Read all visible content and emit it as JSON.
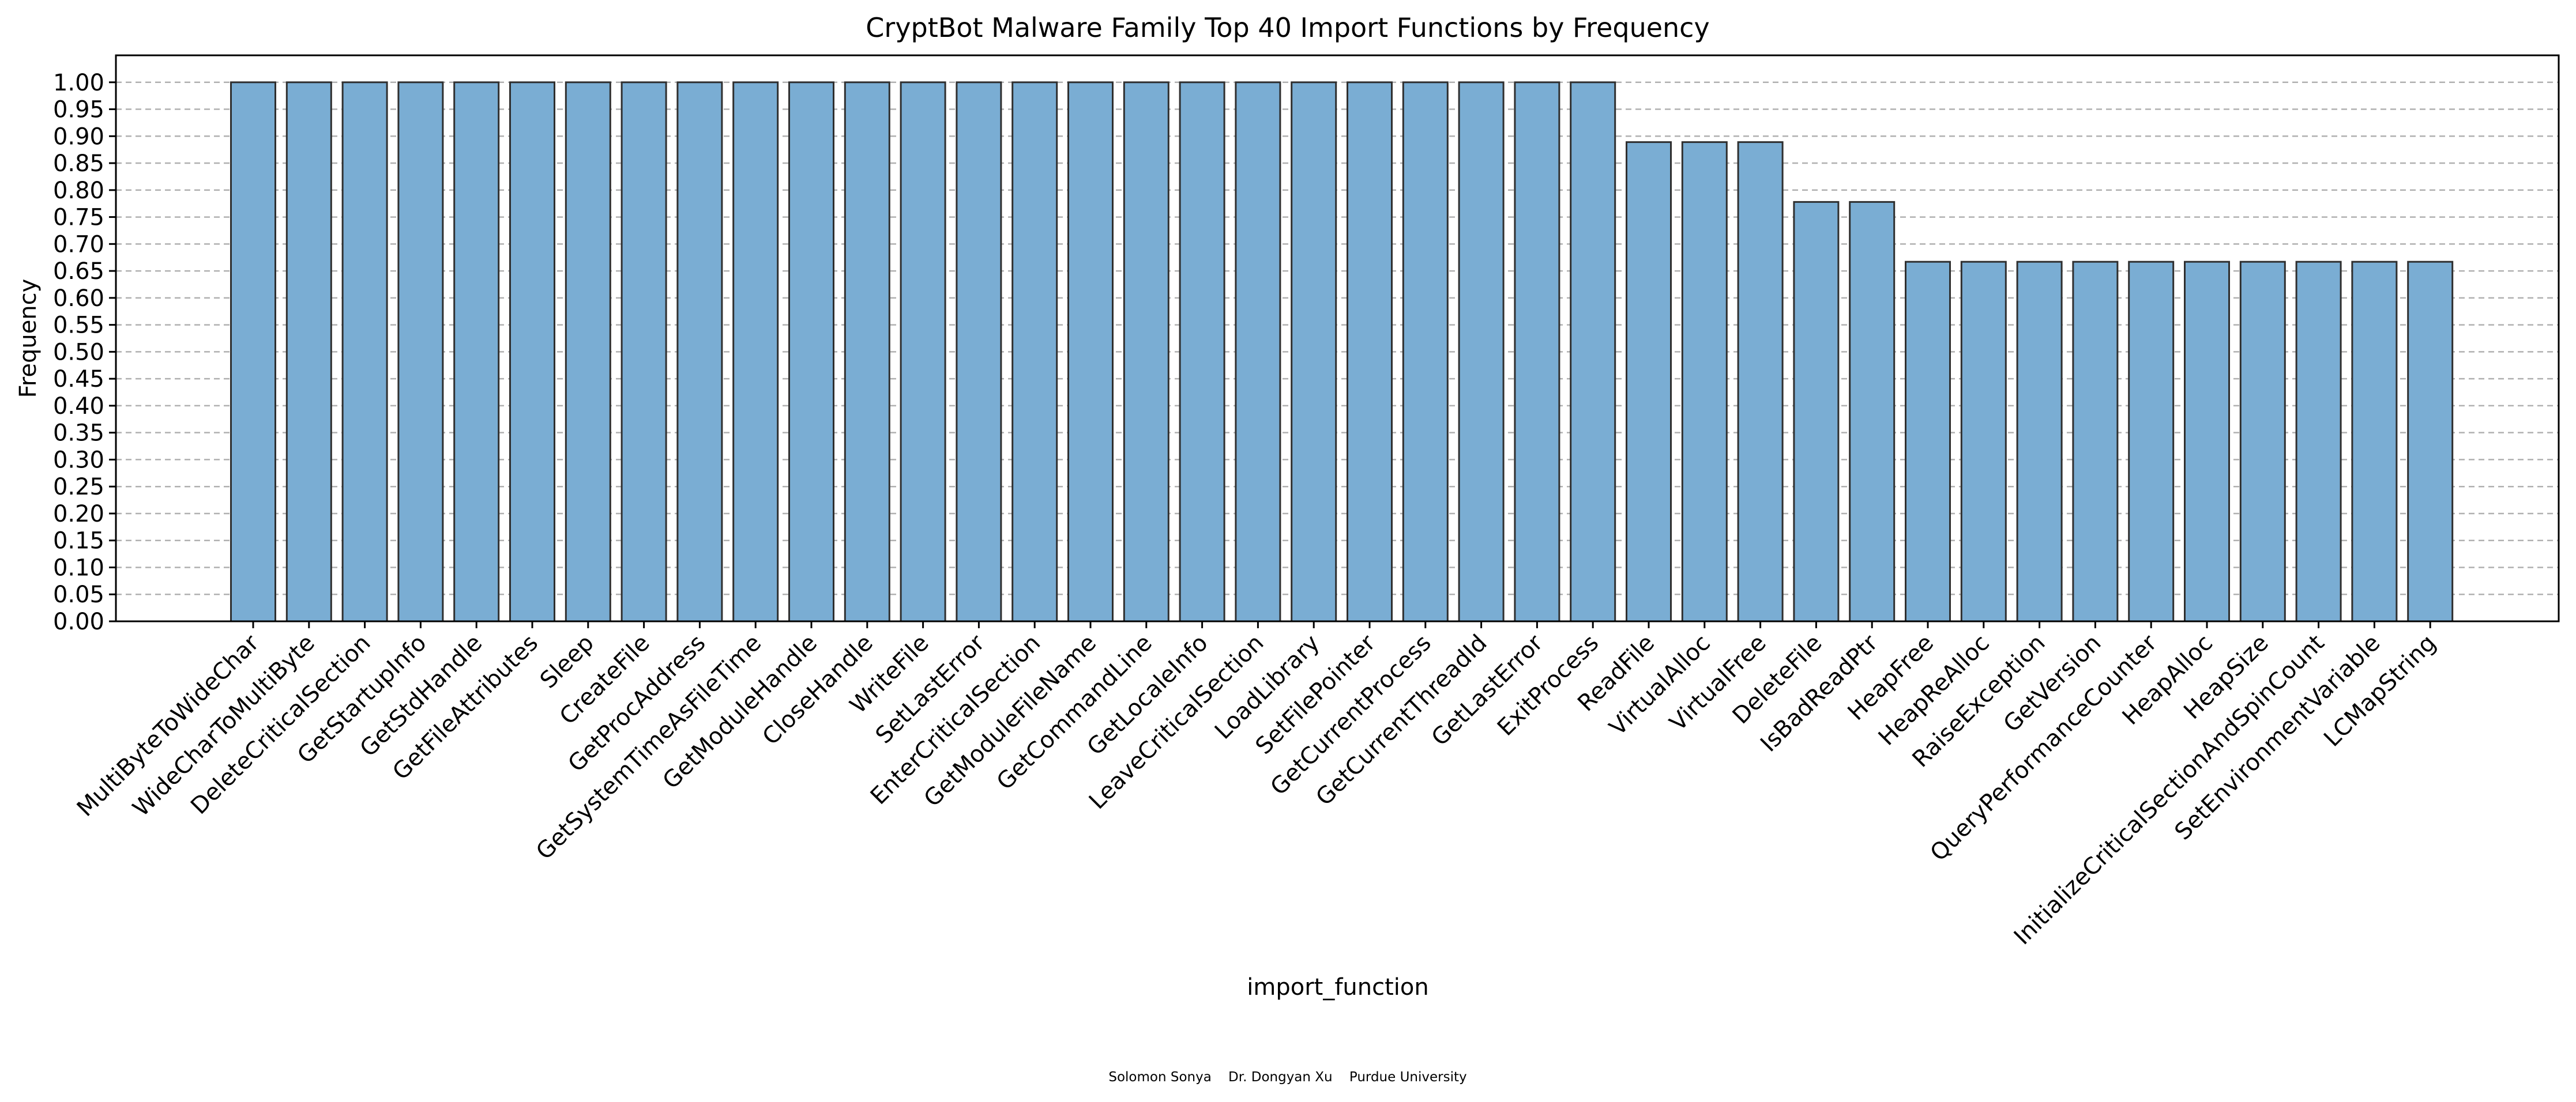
{
  "chart_data": {
    "type": "bar",
    "title": "CryptBot Malware Family Top 40 Import Functions by Frequency",
    "xlabel": "import_function",
    "ylabel": "Frequency",
    "ylim": [
      0,
      1.05
    ],
    "yticks": [
      "0.00",
      "0.05",
      "0.10",
      "0.15",
      "0.20",
      "0.25",
      "0.30",
      "0.35",
      "0.40",
      "0.45",
      "0.50",
      "0.55",
      "0.60",
      "0.65",
      "0.70",
      "0.75",
      "0.80",
      "0.85",
      "0.90",
      "0.95",
      "1.00"
    ],
    "grid": "y-dashed",
    "bar_color": "#7aadd3",
    "edge_color": "#2f2f2f",
    "categories": [
      "MultiByteToWideChar",
      "WideCharToMultiByte",
      "DeleteCriticalSection",
      "GetStartupInfo",
      "GetStdHandle",
      "GetFileAttributes",
      "Sleep",
      "CreateFile",
      "GetProcAddress",
      "GetSystemTimeAsFileTime",
      "GetModuleHandle",
      "CloseHandle",
      "WriteFile",
      "SetLastError",
      "EnterCriticalSection",
      "GetModuleFileName",
      "GetCommandLine",
      "GetLocaleInfo",
      "LeaveCriticalSection",
      "LoadLibrary",
      "SetFilePointer",
      "GetCurrentProcess",
      "GetCurrentThreadId",
      "GetLastError",
      "ExitProcess",
      "ReadFile",
      "VirtualAlloc",
      "VirtualFree",
      "DeleteFile",
      "IsBadReadPtr",
      "HeapFree",
      "HeapReAlloc",
      "RaiseException",
      "GetVersion",
      "QueryPerformanceCounter",
      "HeapAlloc",
      "HeapSize",
      "InitializeCriticalSectionAndSpinCount",
      "SetEnvironmentVariable",
      "LCMapString"
    ],
    "values": [
      1.0,
      1.0,
      1.0,
      1.0,
      1.0,
      1.0,
      1.0,
      1.0,
      1.0,
      1.0,
      1.0,
      1.0,
      1.0,
      1.0,
      1.0,
      1.0,
      1.0,
      1.0,
      1.0,
      1.0,
      1.0,
      1.0,
      1.0,
      1.0,
      1.0,
      0.889,
      0.889,
      0.889,
      0.778,
      0.778,
      0.667,
      0.667,
      0.667,
      0.667,
      0.667,
      0.667,
      0.667,
      0.667,
      0.667,
      0.667
    ]
  },
  "footer": "Solomon Sonya    Dr. Dongyan Xu    Purdue University"
}
